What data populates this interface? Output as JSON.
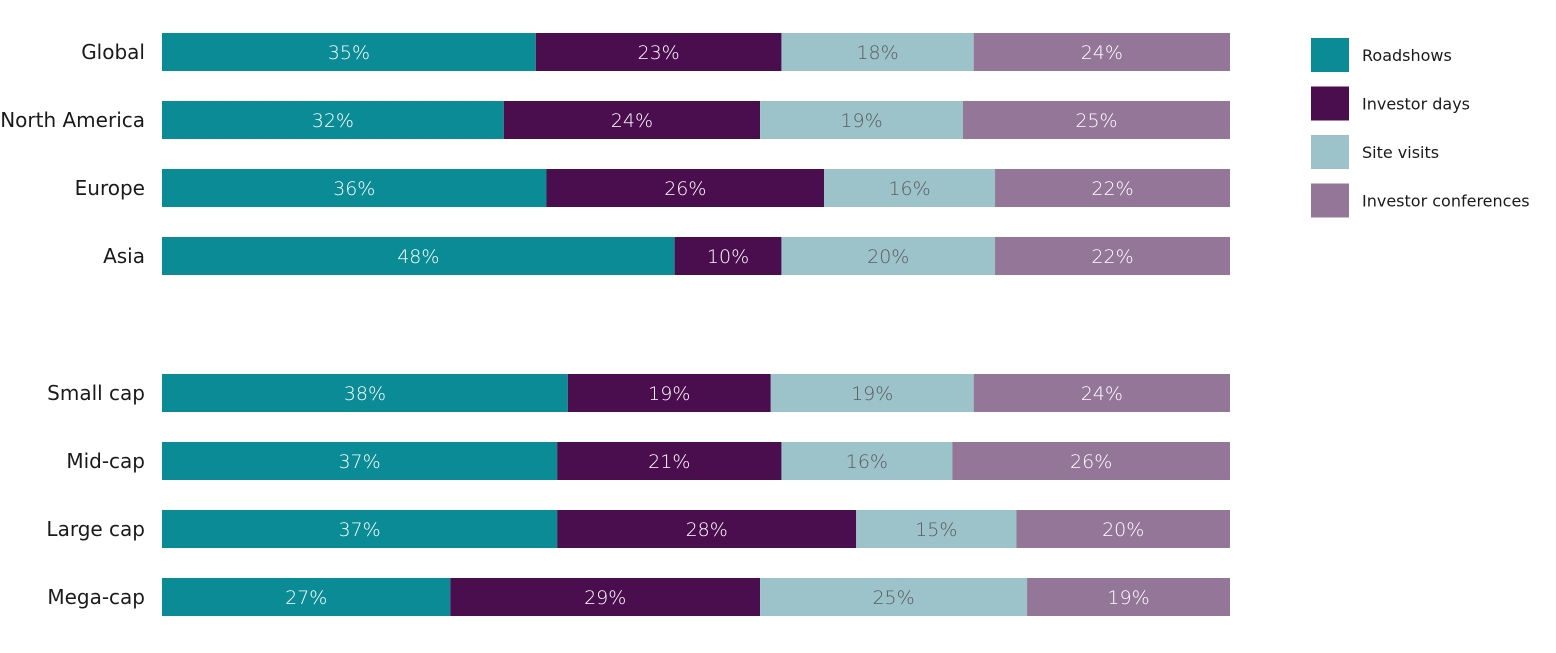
{
  "chart_data": {
    "type": "bar",
    "orientation": "horizontal",
    "stacked": true,
    "normalized": true,
    "grid": false,
    "legend_position": "top-right",
    "groups": [
      {
        "categories": [
          "Global",
          "North America",
          "Europe",
          "Asia"
        ]
      },
      {
        "categories": [
          "Small cap",
          "Mid-cap",
          "Large cap",
          "Mega-cap"
        ]
      }
    ],
    "categories": [
      "Global",
      "North America",
      "Europe",
      "Asia",
      "Small cap",
      "Mid-cap",
      "Large cap",
      "Mega-cap"
    ],
    "series": [
      {
        "name": "Roadshows",
        "color": "#0a8b96",
        "label_color": "#ffffff",
        "values": [
          35,
          32,
          36,
          48,
          38,
          37,
          37,
          27
        ]
      },
      {
        "name": "Investor days",
        "color": "#4a0d4e",
        "label_color": "#ffffff",
        "values": [
          23,
          24,
          26,
          10,
          19,
          21,
          28,
          29
        ]
      },
      {
        "name": "Site visits",
        "color": "#9cc3ca",
        "label_color": "#5c5c5c",
        "values": [
          18,
          19,
          16,
          20,
          19,
          16,
          15,
          25
        ]
      },
      {
        "name": "Investor conferences",
        "color": "#937698",
        "label_color": "#ffffff",
        "values": [
          24,
          25,
          22,
          22,
          24,
          26,
          20,
          19
        ]
      }
    ],
    "value_suffix": "%"
  }
}
